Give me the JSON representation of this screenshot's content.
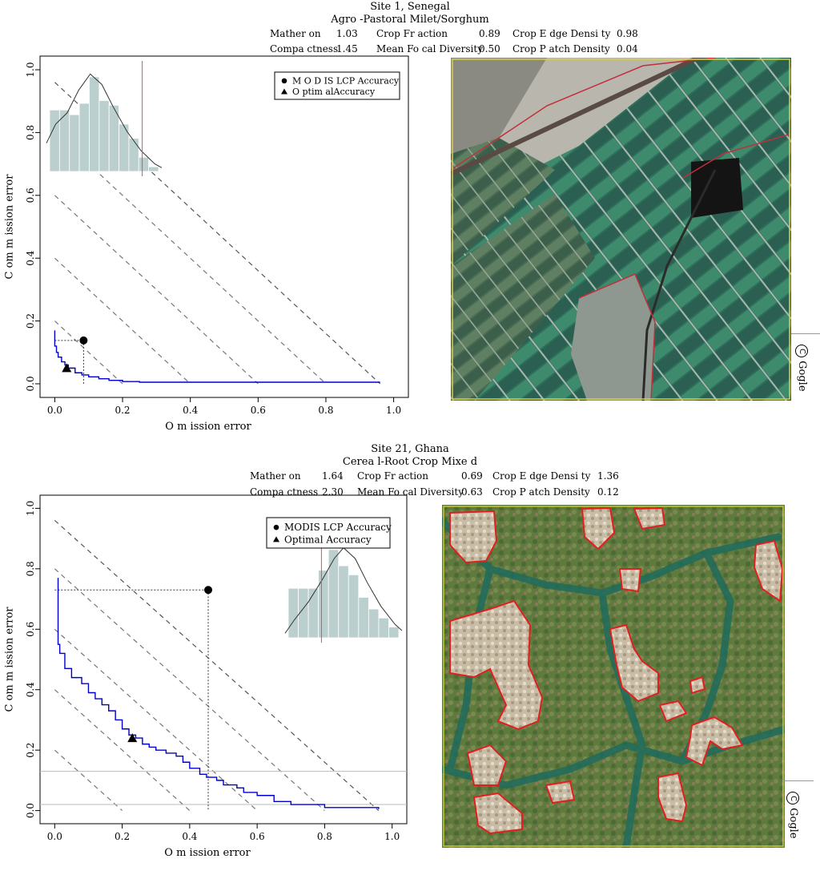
{
  "sites": [
    {
      "title": "Site 1, Senegal",
      "subtitle": "Agro -Pastoral Milet/Sorghum",
      "stats": [
        {
          "label": "Mather on",
          "value": "1.03"
        },
        {
          "label": "Crop Fr action",
          "value": "0.89"
        },
        {
          "label": "Crop E dge Densi ty",
          "value": "0.98"
        },
        {
          "label": "Compa ctness",
          "value": "1.45"
        },
        {
          "label": "Mean Fo cal Diversity",
          "value": "0.50"
        },
        {
          "label": "Crop P atch Density",
          "value": "0.04"
        }
      ],
      "legend": {
        "modis": "M O D IS LCP Accuracy",
        "optimal": "O ptim alAccuracy"
      },
      "watermark": "Gogle",
      "copyright_symbol": "C"
    },
    {
      "title": "Site 21, Ghana",
      "subtitle": "Cerea l-Root Crop Mixe d",
      "stats": [
        {
          "label": "Mather on",
          "value": "1.64"
        },
        {
          "label": "Crop Fr action",
          "value": "0.69"
        },
        {
          "label": "Crop E dge Densi ty",
          "value": "1.36"
        },
        {
          "label": "Compa ctness",
          "value": "2.30"
        },
        {
          "label": "Mean Fo cal Diversity",
          "value": "0.63"
        },
        {
          "label": "Crop P atch Density",
          "value": "0.12"
        }
      ],
      "legend": {
        "modis": "MODIS LCP Accuracy",
        "optimal": "Optimal Accuracy"
      },
      "watermark": "Gogle",
      "copyright_symbol": "C"
    }
  ],
  "chart_data": [
    {
      "type": "line",
      "xlabel": "O m ission error",
      "ylabel": "C om m ission error",
      "xlim": [
        0,
        1.0
      ],
      "ylim": [
        0,
        1.0
      ],
      "ticks": [
        "0.0",
        "0.2",
        "0.4",
        "0.6",
        "0.8",
        "1.0"
      ],
      "tick_values": [
        0,
        0.2,
        0.4,
        0.6,
        0.8,
        1.0
      ],
      "grid": false,
      "legend_position": "top-right",
      "curve_color": "#0000cc",
      "curve": [
        [
          0.0,
          0.17
        ],
        [
          0.0,
          0.12
        ],
        [
          0.005,
          0.1
        ],
        [
          0.01,
          0.085
        ],
        [
          0.02,
          0.07
        ],
        [
          0.03,
          0.06
        ],
        [
          0.04,
          0.05
        ],
        [
          0.06,
          0.035
        ],
        [
          0.08,
          0.028
        ],
        [
          0.1,
          0.022
        ],
        [
          0.13,
          0.016
        ],
        [
          0.16,
          0.011
        ],
        [
          0.2,
          0.007
        ],
        [
          0.25,
          0.005
        ],
        [
          0.35,
          0.005
        ],
        [
          0.5,
          0.005
        ],
        [
          0.7,
          0.005
        ],
        [
          0.96,
          0.005
        ]
      ],
      "modis_point": {
        "x": 0.085,
        "y": 0.138
      },
      "optimal_point": {
        "x": 0.035,
        "y": 0.05
      },
      "isolines": [
        0.2,
        0.4,
        0.6,
        0.8
      ],
      "isoline_main": 0.96,
      "hlines": [],
      "histogram": {
        "bars": [
          0.65,
          0.65,
          0.6,
          0.72,
          1.0,
          0.75,
          0.7,
          0.5,
          0.35,
          0.15,
          0.05
        ],
        "density": [
          [
            0.0,
            0.3
          ],
          [
            0.08,
            0.5
          ],
          [
            0.18,
            0.62
          ],
          [
            0.28,
            0.86
          ],
          [
            0.38,
            1.03
          ],
          [
            0.48,
            0.92
          ],
          [
            0.58,
            0.68
          ],
          [
            0.7,
            0.42
          ],
          [
            0.82,
            0.22
          ],
          [
            0.94,
            0.08
          ],
          [
            1.0,
            0.04
          ]
        ],
        "marker_fraction": 0.85
      }
    },
    {
      "type": "line",
      "xlabel": "O m ission error",
      "ylabel": "C om m ission error",
      "xlim": [
        0,
        1.0
      ],
      "ylim": [
        0,
        1.0
      ],
      "ticks": [
        "0.0",
        "0.2",
        "0.4",
        "0.6",
        "0.8",
        "1.0"
      ],
      "tick_values": [
        0,
        0.2,
        0.4,
        0.6,
        0.8,
        1.0
      ],
      "grid": false,
      "legend_position": "top-right",
      "curve_color": "#0000cc",
      "curve": [
        [
          0.01,
          0.77
        ],
        [
          0.01,
          0.55
        ],
        [
          0.015,
          0.52
        ],
        [
          0.03,
          0.47
        ],
        [
          0.05,
          0.44
        ],
        [
          0.08,
          0.42
        ],
        [
          0.1,
          0.39
        ],
        [
          0.12,
          0.37
        ],
        [
          0.14,
          0.35
        ],
        [
          0.16,
          0.33
        ],
        [
          0.18,
          0.3
        ],
        [
          0.2,
          0.27
        ],
        [
          0.22,
          0.25
        ],
        [
          0.24,
          0.24
        ],
        [
          0.26,
          0.22
        ],
        [
          0.28,
          0.21
        ],
        [
          0.3,
          0.2
        ],
        [
          0.33,
          0.19
        ],
        [
          0.36,
          0.18
        ],
        [
          0.38,
          0.16
        ],
        [
          0.4,
          0.14
        ],
        [
          0.43,
          0.12
        ],
        [
          0.45,
          0.11
        ],
        [
          0.48,
          0.1
        ],
        [
          0.5,
          0.085
        ],
        [
          0.54,
          0.075
        ],
        [
          0.56,
          0.06
        ],
        [
          0.6,
          0.05
        ],
        [
          0.65,
          0.03
        ],
        [
          0.7,
          0.02
        ],
        [
          0.8,
          0.01
        ],
        [
          0.96,
          0.005
        ]
      ],
      "modis_point": {
        "x": 0.455,
        "y": 0.73
      },
      "optimal_point": {
        "x": 0.23,
        "y": 0.24
      },
      "isolines": [
        0.2,
        0.4,
        0.6,
        0.8
      ],
      "isoline_main": 0.96,
      "hlines": [
        0.13,
        0.02
      ],
      "histogram": {
        "bars": [
          0.55,
          0.55,
          0.55,
          0.75,
          0.98,
          0.8,
          0.7,
          0.45,
          0.32,
          0.22,
          0.12
        ],
        "density": [
          [
            0.0,
            0.05
          ],
          [
            0.08,
            0.2
          ],
          [
            0.2,
            0.4
          ],
          [
            0.32,
            0.65
          ],
          [
            0.42,
            0.88
          ],
          [
            0.5,
            1.0
          ],
          [
            0.6,
            0.88
          ],
          [
            0.7,
            0.62
          ],
          [
            0.82,
            0.35
          ],
          [
            0.94,
            0.15
          ],
          [
            1.0,
            0.08
          ]
        ],
        "marker_fraction": 0.3
      }
    }
  ]
}
